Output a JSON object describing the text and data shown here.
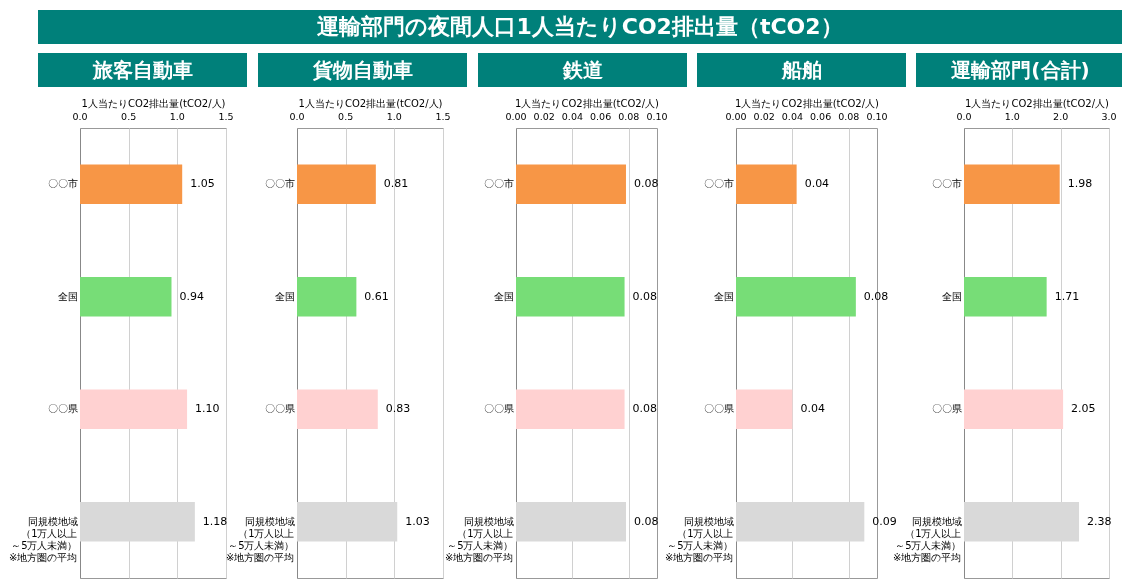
{
  "chart_data": [
    {
      "type": "bar",
      "orientation": "horizontal",
      "title": "旅客自動車",
      "annotations": [
        "運輸部門の夜間人口1人当たりCO2排出量（tCO2）"
      ],
      "xlabel": "1人当たりCO2排出量(tCO2/人)",
      "categories": [
        "〇〇市",
        "全国",
        "〇〇県",
        "同規模地域（1万人以上～5万人未満）※地方圏の平均"
      ],
      "values": [
        1.05,
        0.94,
        1.1,
        1.18
      ],
      "value_labels": [
        "1.05",
        "0.94",
        "1.10",
        "1.18"
      ],
      "colors": [
        "#f79646",
        "#77dd77",
        "#ffd1d1",
        "#d9d9d9"
      ],
      "xlim": [
        0,
        1.5
      ],
      "xticks": [
        {
          "value": 0,
          "label": "0.0"
        },
        0.5,
        {
          "value": 1,
          "label": "1.0"
        },
        1.5
      ],
      "grid": "x",
      "legend": false
    },
    {
      "type": "bar",
      "orientation": "horizontal",
      "title": "貨物自動車",
      "xlabel": "1人当たりCO2排出量(tCO2/人)",
      "categories": [
        "〇〇市",
        "全国",
        "〇〇県",
        "同規模地域（1万人以上～5万人未満）※地方圏の平均"
      ],
      "values": [
        0.81,
        0.61,
        0.83,
        1.03
      ],
      "value_labels": [
        "0.81",
        "0.61",
        "0.83",
        "1.03"
      ],
      "colors": [
        "#f79646",
        "#77dd77",
        "#ffd1d1",
        "#d9d9d9"
      ],
      "xlim": [
        0,
        1.5
      ],
      "xticks": [
        {
          "value": 0,
          "label": "0.0"
        },
        0.5,
        {
          "value": 1,
          "label": "1.0"
        },
        1.5
      ],
      "grid": "x",
      "legend": false
    },
    {
      "type": "bar",
      "orientation": "horizontal",
      "title": "鉄道",
      "xlabel": "1人当たりCO2排出量(tCO2/人)",
      "categories": [
        "〇〇市",
        "全国",
        "〇〇県",
        "同規模地域（1万人以上～5万人未満）※地方圏の平均"
      ],
      "values": [
        0.078,
        0.077,
        0.077,
        0.078
      ],
      "value_labels": [
        "0.08",
        "0.08",
        "0.08",
        "0.08"
      ],
      "colors": [
        "#f79646",
        "#77dd77",
        "#ffd1d1",
        "#d9d9d9"
      ],
      "xlim": [
        0,
        0.1
      ],
      "xticks": [
        {
          "value": 0,
          "label": "0.00"
        },
        0.02,
        0.04,
        0.06,
        0.08,
        {
          "value": 0.1,
          "label": "0.10"
        }
      ],
      "grid": "x",
      "legend": false
    },
    {
      "type": "bar",
      "orientation": "horizontal",
      "title": "船舶",
      "xlabel": "1人当たりCO2排出量(tCO2/人)",
      "categories": [
        "〇〇市",
        "全国",
        "〇〇県",
        "同規模地域（1万人以上～5万人未満）※地方圏の平均"
      ],
      "values": [
        0.043,
        0.085,
        0.04,
        0.091
      ],
      "value_labels": [
        "0.04",
        "0.08",
        "0.04",
        "0.09"
      ],
      "colors": [
        "#f79646",
        "#77dd77",
        "#ffd1d1",
        "#d9d9d9"
      ],
      "xlim": [
        0,
        0.1
      ],
      "xticks": [
        {
          "value": 0,
          "label": "0.00"
        },
        0.02,
        0.04,
        0.06,
        0.08,
        {
          "value": 0.1,
          "label": "0.10"
        }
      ],
      "grid": "x",
      "legend": false
    },
    {
      "type": "bar",
      "orientation": "horizontal",
      "title": "運輸部門(合計)",
      "xlabel": "1人当たりCO2排出量(tCO2/人)",
      "categories": [
        "〇〇市",
        "全国",
        "〇〇県",
        "同規模地域（1万人以上～5万人未満）※地方圏の平均"
      ],
      "values": [
        1.98,
        1.71,
        2.05,
        2.38
      ],
      "value_labels": [
        "1.98",
        "1.71",
        "2.05",
        "2.38"
      ],
      "colors": [
        "#f79646",
        "#77dd77",
        "#ffd1d1",
        "#d9d9d9"
      ],
      "xlim": [
        0,
        3
      ],
      "xticks": [
        {
          "value": 0,
          "label": "0.0"
        },
        {
          "value": 1,
          "label": "1.0"
        },
        {
          "value": 2,
          "label": "2.0"
        },
        {
          "value": 3,
          "label": "3.0"
        }
      ],
      "grid": "x",
      "legend": false
    }
  ]
}
